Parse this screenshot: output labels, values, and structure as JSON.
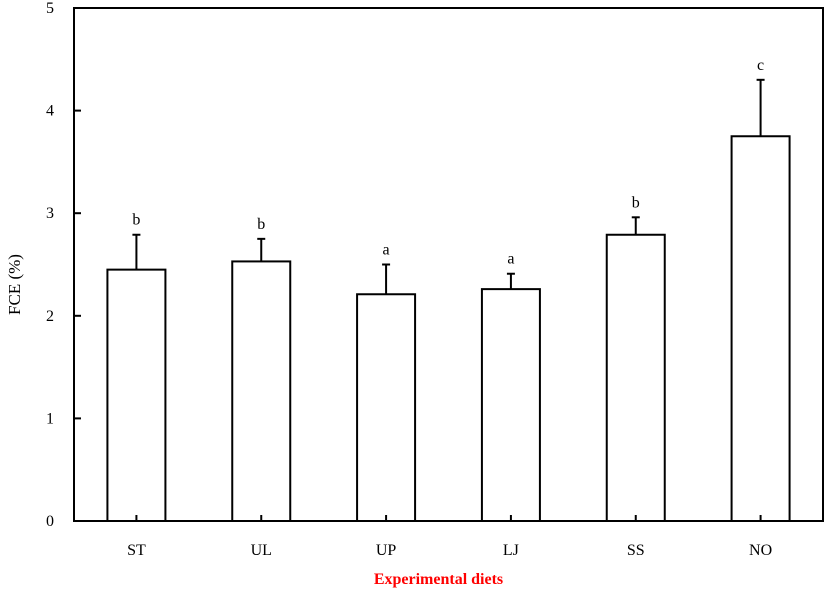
{
  "chart_data": {
    "type": "bar",
    "categories": [
      "ST",
      "UL",
      "UP",
      "LJ",
      "SS",
      "NO"
    ],
    "values": [
      2.45,
      2.53,
      2.21,
      2.26,
      2.79,
      3.75
    ],
    "error_upper": [
      0.34,
      0.22,
      0.29,
      0.15,
      0.17,
      0.55
    ],
    "significance_letters": [
      "b",
      "b",
      "a",
      "a",
      "b",
      "c"
    ],
    "xlabel": "Experimental diets",
    "ylabel": "FCE (%)",
    "ylim": [
      0,
      5
    ],
    "yticks": [
      0,
      1,
      2,
      3,
      4,
      5
    ],
    "grid": false,
    "legend": "none",
    "bar_fill": "#ffffff",
    "bar_stroke": "#000000",
    "xlabel_color": "#ff0000"
  }
}
